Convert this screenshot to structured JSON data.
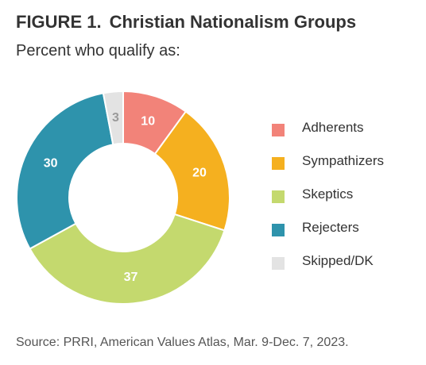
{
  "header": {
    "figure_label": "FIGURE 1.",
    "title": "Christian Nationalism Groups",
    "subtitle": "Percent who qualify as:"
  },
  "source": "Source: PRRI, American Values Atlas, Mar. 9-Dec. 7, 2023.",
  "chart_data": {
    "type": "pie",
    "style": "donut",
    "title": "Christian Nationalism Groups",
    "subtitle": "Percent who qualify as:",
    "legend_position": "right",
    "categories": [
      "Adherents",
      "Sympathizers",
      "Skeptics",
      "Rejecters",
      "Skipped/DK"
    ],
    "values": [
      10,
      20,
      37,
      30,
      3
    ],
    "colors": [
      "#f28379",
      "#f5b01f",
      "#c4d96e",
      "#2e93ac",
      "#e3e3e3"
    ],
    "label_colors": [
      "#ffffff",
      "#ffffff",
      "#ffffff",
      "#ffffff",
      "#9a9a9a"
    ]
  }
}
